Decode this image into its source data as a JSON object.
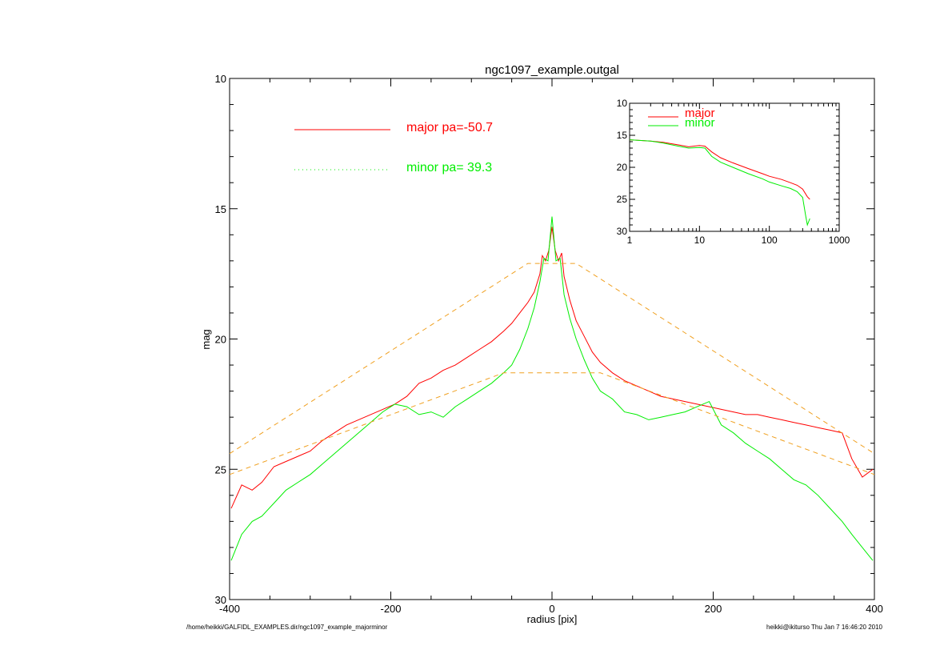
{
  "colors": {
    "major": "#ff0000",
    "minor": "#00ee00",
    "fit": "#f0a020",
    "axis": "#000000"
  },
  "footer": {
    "path": "/home/heikki/GALFIDL_EXAMPLES.dir/ngc1097_example_majorminor",
    "stamp": "heikki@ikiturso  Thu Jan  7 16:46:20 2010"
  },
  "chart_data": [
    {
      "type": "line",
      "title": "ngc1097_example.outgal",
      "xlabel": "radius [pix]",
      "ylabel": "mag",
      "xlim": [
        -400,
        400
      ],
      "ylim": [
        30,
        10
      ],
      "y_reversed": true,
      "x_ticks": [
        -400,
        -200,
        0,
        200,
        400
      ],
      "y_ticks": [
        10,
        15,
        20,
        25,
        30
      ],
      "grid": false,
      "legend": [
        {
          "text": "major pa=-50.7",
          "style": "solid",
          "color": "#ff0000"
        },
        {
          "text": "minor pa= 39.3",
          "style": "dotted",
          "color": "#00ee00"
        }
      ],
      "legend_position": "top-left",
      "series": [
        {
          "name": "major pa=-50.7",
          "style": "solid",
          "x": [
            -398,
            -385,
            -372,
            -360,
            -345,
            -330,
            -315,
            -300,
            -285,
            -270,
            -255,
            -240,
            -225,
            -210,
            -195,
            -180,
            -165,
            -150,
            -135,
            -120,
            -105,
            -90,
            -75,
            -60,
            -50,
            -40,
            -30,
            -22,
            -15,
            -12,
            -8,
            -4,
            0,
            4,
            8,
            12,
            15,
            22,
            30,
            40,
            50,
            60,
            75,
            90,
            105,
            120,
            135,
            150,
            165,
            180,
            195,
            210,
            225,
            240,
            255,
            270,
            285,
            300,
            315,
            330,
            345,
            360,
            372,
            385,
            398
          ],
          "y": [
            26.5,
            25.6,
            25.8,
            25.5,
            24.9,
            24.7,
            24.5,
            24.3,
            23.9,
            23.6,
            23.3,
            23.1,
            22.9,
            22.7,
            22.5,
            22.2,
            21.7,
            21.5,
            21.2,
            21.0,
            20.7,
            20.4,
            20.1,
            19.7,
            19.4,
            19.0,
            18.6,
            18.2,
            17.5,
            16.8,
            17.0,
            16.6,
            15.7,
            16.6,
            17.0,
            16.7,
            17.6,
            18.5,
            19.3,
            19.9,
            20.5,
            20.9,
            21.3,
            21.6,
            21.8,
            22.0,
            22.2,
            22.3,
            22.4,
            22.5,
            22.6,
            22.7,
            22.8,
            22.9,
            22.9,
            23.0,
            23.1,
            23.2,
            23.3,
            23.4,
            23.5,
            23.6,
            24.6,
            25.3,
            25.0
          ]
        },
        {
          "name": "minor pa= 39.3",
          "style": "solid",
          "x": [
            -398,
            -385,
            -372,
            -360,
            -345,
            -330,
            -315,
            -300,
            -285,
            -270,
            -255,
            -240,
            -225,
            -210,
            -195,
            -180,
            -165,
            -150,
            -135,
            -120,
            -105,
            -90,
            -75,
            -60,
            -50,
            -40,
            -30,
            -22,
            -15,
            -10,
            -5,
            0,
            5,
            10,
            15,
            22,
            30,
            40,
            50,
            60,
            75,
            90,
            105,
            120,
            135,
            150,
            165,
            180,
            195,
            210,
            225,
            240,
            255,
            270,
            285,
            300,
            315,
            330,
            345,
            360,
            372,
            385,
            398
          ],
          "y": [
            28.5,
            27.5,
            27.0,
            26.8,
            26.3,
            25.8,
            25.5,
            25.2,
            24.8,
            24.4,
            24.0,
            23.6,
            23.2,
            22.8,
            22.5,
            22.6,
            22.9,
            22.8,
            23.0,
            22.6,
            22.3,
            22.0,
            21.7,
            21.3,
            21.0,
            20.4,
            19.6,
            18.8,
            17.8,
            16.9,
            17.0,
            15.3,
            17.0,
            16.9,
            18.3,
            19.2,
            20.0,
            20.8,
            21.5,
            22.0,
            22.3,
            22.8,
            22.9,
            23.1,
            23.0,
            22.9,
            22.8,
            22.6,
            22.4,
            23.3,
            23.6,
            24.0,
            24.3,
            24.6,
            25.0,
            25.4,
            25.6,
            26.0,
            26.5,
            27.0,
            27.5,
            28.0,
            28.5
          ]
        },
        {
          "name": "",
          "style": "dashed",
          "x": [
            -400,
            -30,
            30,
            400
          ],
          "y": [
            24.4,
            17.1,
            17.1,
            24.4
          ]
        },
        {
          "name": "",
          "style": "dashed",
          "x": [
            -400,
            -60,
            60,
            400
          ],
          "y": [
            25.2,
            21.3,
            21.3,
            25.2
          ]
        }
      ]
    },
    {
      "type": "line",
      "title": "",
      "xlabel": "",
      "ylabel": "",
      "x_scale": "log",
      "xlim": [
        1,
        1000
      ],
      "ylim": [
        30,
        10
      ],
      "y_reversed": true,
      "x_ticks": [
        1,
        10,
        100,
        1000
      ],
      "y_ticks": [
        10,
        15,
        20,
        25,
        30
      ],
      "grid": false,
      "legend": [
        {
          "text": "major",
          "color": "#ff0000"
        },
        {
          "text": "minor",
          "color": "#00ee00"
        }
      ],
      "legend_position": "top-left",
      "series": [
        {
          "name": "major",
          "x": [
            1,
            2,
            3,
            5,
            7,
            10,
            12,
            15,
            20,
            30,
            50,
            80,
            100,
            150,
            200,
            250,
            300,
            350,
            380
          ],
          "y": [
            15.7,
            15.9,
            16.1,
            16.5,
            16.8,
            16.6,
            16.7,
            17.6,
            18.5,
            19.3,
            20.2,
            21.0,
            21.4,
            21.9,
            22.4,
            22.8,
            23.4,
            24.6,
            25.0
          ]
        },
        {
          "name": "minor",
          "x": [
            1,
            2,
            3,
            5,
            7,
            10,
            12,
            15,
            20,
            30,
            50,
            80,
            100,
            150,
            200,
            250,
            300,
            330,
            350,
            380
          ],
          "y": [
            15.7,
            15.9,
            16.2,
            16.7,
            17.0,
            16.9,
            17.0,
            18.3,
            19.2,
            20.0,
            21.0,
            21.8,
            22.3,
            22.9,
            23.3,
            23.8,
            24.7,
            27.5,
            29.0,
            28.0
          ]
        }
      ]
    }
  ]
}
